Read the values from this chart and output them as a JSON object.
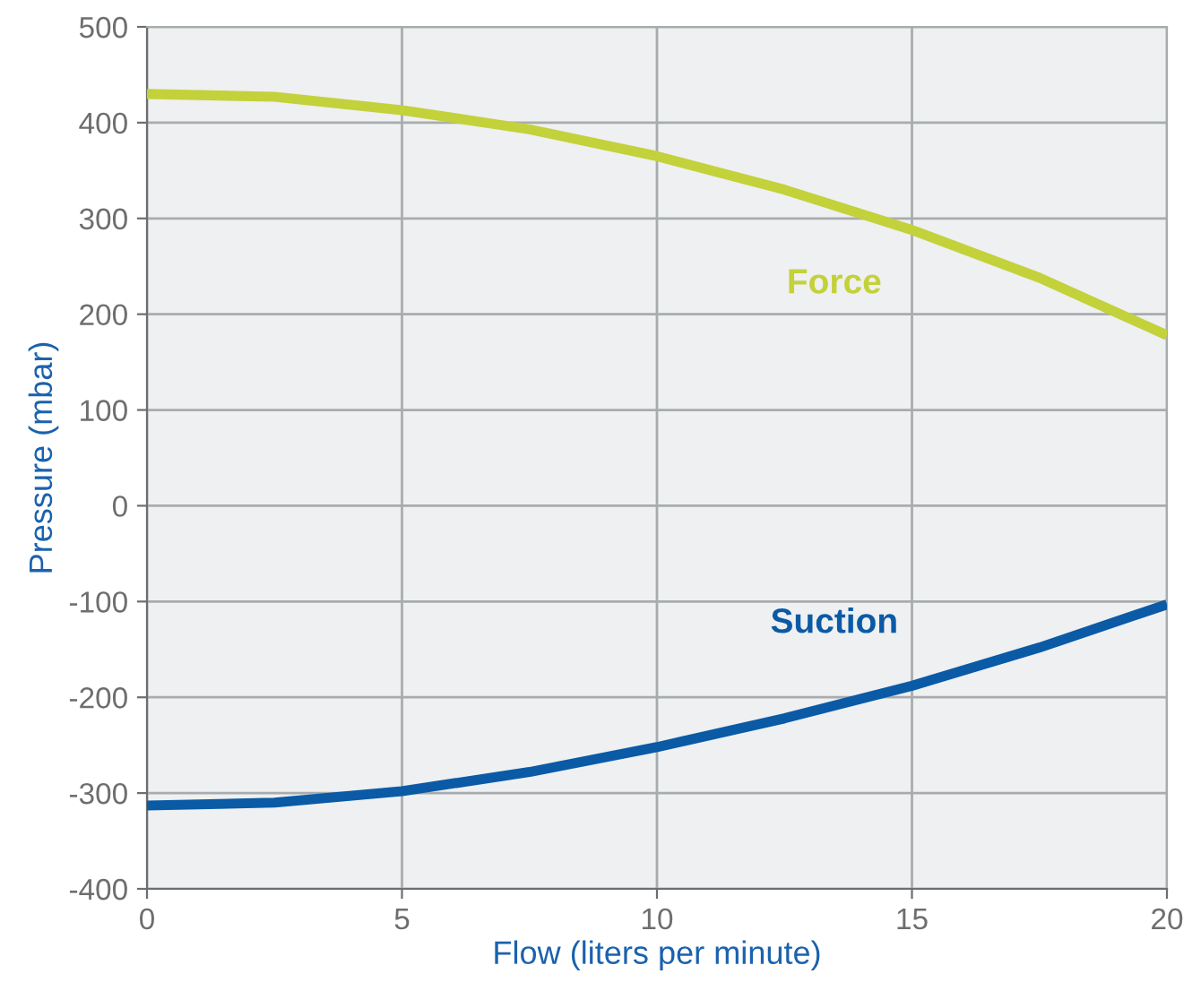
{
  "chart_data": {
    "type": "line",
    "xlabel": "Flow (liters per minute)",
    "ylabel": "Pressure (mbar)",
    "x": [
      0,
      2.5,
      5,
      7.5,
      10,
      12.5,
      15,
      17.5,
      20
    ],
    "series": [
      {
        "name": "Force",
        "color": "#c3d13b",
        "values": [
          430,
          427,
          413,
          393,
          365,
          330,
          288,
          238,
          178
        ]
      },
      {
        "name": "Suction",
        "color": "#0a5aa6",
        "values": [
          -313,
          -310,
          -298,
          -278,
          -252,
          -222,
          -188,
          -148,
          -103
        ]
      }
    ],
    "xlim": [
      0,
      20
    ],
    "xticks": [
      0,
      5,
      10,
      15,
      20
    ],
    "ylim": [
      -400,
      500
    ],
    "yticks": [
      -400,
      -300,
      -200,
      -100,
      0,
      100,
      200,
      300,
      400,
      500
    ],
    "grid": true,
    "legend": false,
    "marker": "none",
    "line_style": "solid"
  }
}
